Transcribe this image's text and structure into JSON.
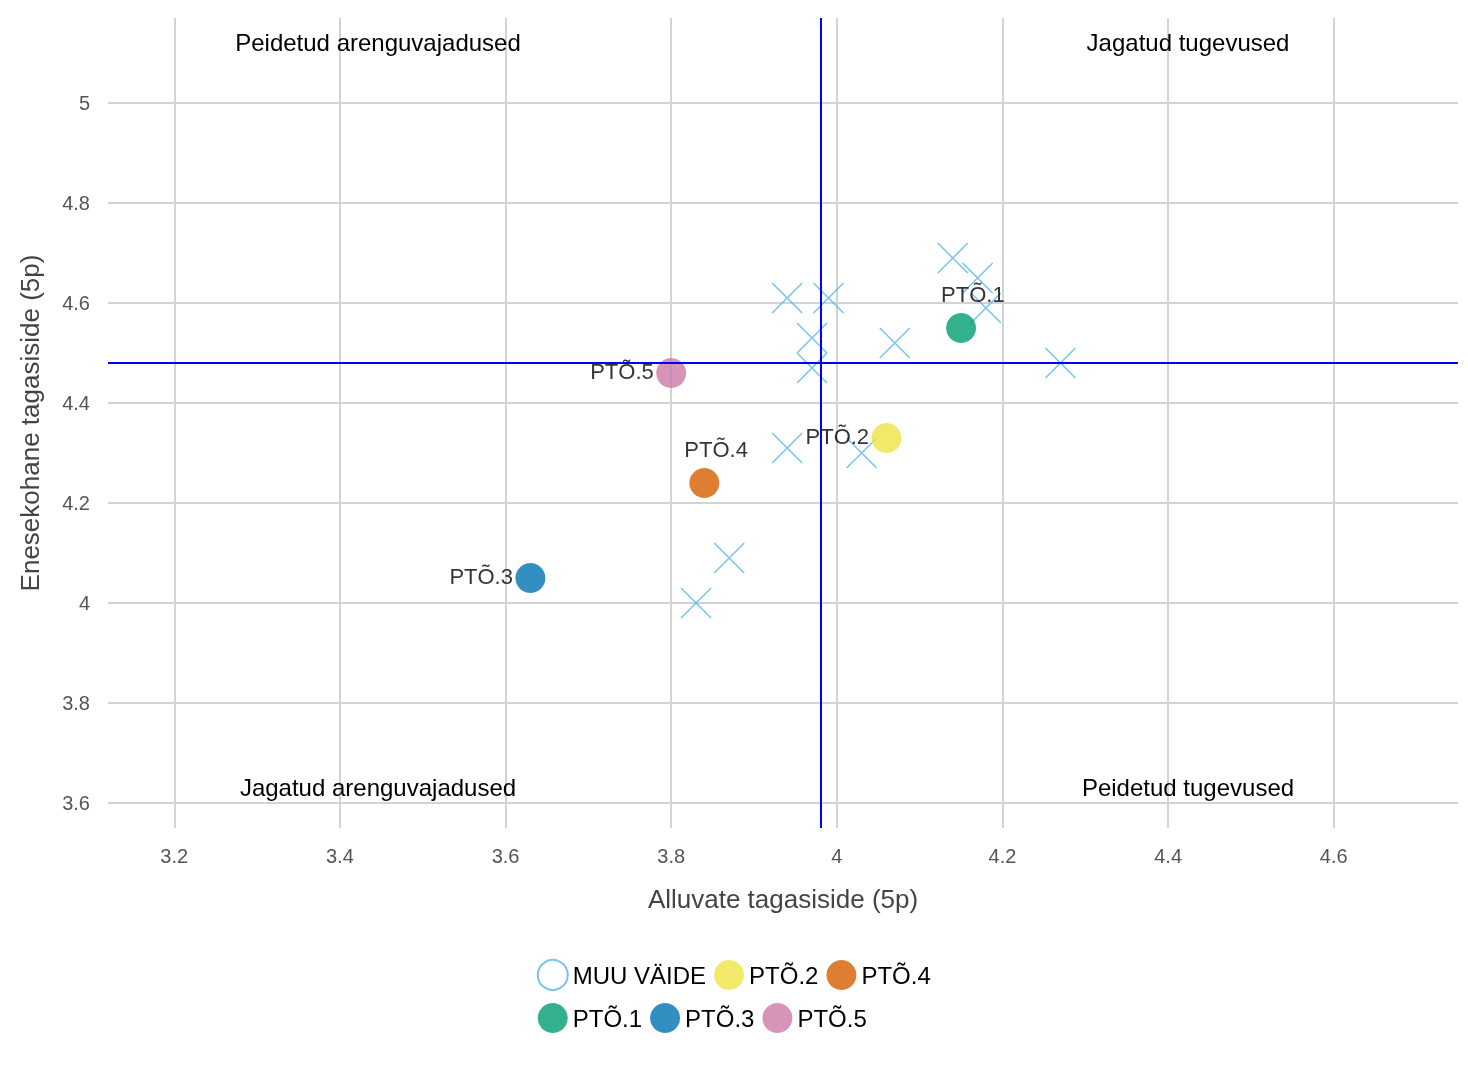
{
  "chart_data": {
    "type": "scatter",
    "xlabel": "Alluvate tagasiside (5p)",
    "ylabel": "Enesekohane tagasiside (5p)",
    "xlim": [
      3.12,
      4.75
    ],
    "ylim": [
      3.55,
      5.17
    ],
    "xticks": [
      3.2,
      3.4,
      3.6,
      3.8,
      4,
      4.2,
      4.4,
      4.6
    ],
    "yticks": [
      3.6,
      3.8,
      4,
      4.2,
      4.4,
      4.6,
      4.8,
      5
    ],
    "grid": true,
    "legend": "bottom",
    "marker": "circle",
    "annotations": [
      "Peidetud arenguvajadused",
      "Jagatud tugevused",
      "Jagatud arenguvajadused",
      "Peidetud tugevused"
    ],
    "ref_lines": [
      {
        "axis": "x",
        "value": 3.98,
        "color": "#0000ff"
      },
      {
        "axis": "y",
        "value": 4.48,
        "color": "#0000ff"
      }
    ],
    "series": [
      {
        "name": "MUU VÄIDE",
        "color": "#56b4e9",
        "marker": "cross",
        "x": [
          4.14,
          4.17,
          4.18,
          3.94,
          3.99,
          3.97,
          3.97,
          4.07,
          4.27,
          3.94,
          4.03,
          3.87,
          3.83
        ],
        "values": [
          4.69,
          4.65,
          4.59,
          4.61,
          4.61,
          4.53,
          4.47,
          4.52,
          4.48,
          4.31,
          4.3,
          4.09,
          4.0
        ]
      },
      {
        "name": "PTÕ.1",
        "color": "#009e73",
        "x": [
          4.15
        ],
        "values": [
          4.55
        ]
      },
      {
        "name": "PTÕ.2",
        "color": "#f0e442",
        "x": [
          4.06
        ],
        "values": [
          4.33
        ]
      },
      {
        "name": "PTÕ.3",
        "color": "#0072b2",
        "x": [
          3.63
        ],
        "values": [
          4.05
        ]
      },
      {
        "name": "PTÕ.4",
        "color": "#d55e00",
        "x": [
          3.84
        ],
        "values": [
          4.24
        ]
      },
      {
        "name": "PTÕ.5",
        "color": "#cc79a7",
        "x": [
          3.8
        ],
        "values": [
          4.46
        ]
      }
    ]
  }
}
